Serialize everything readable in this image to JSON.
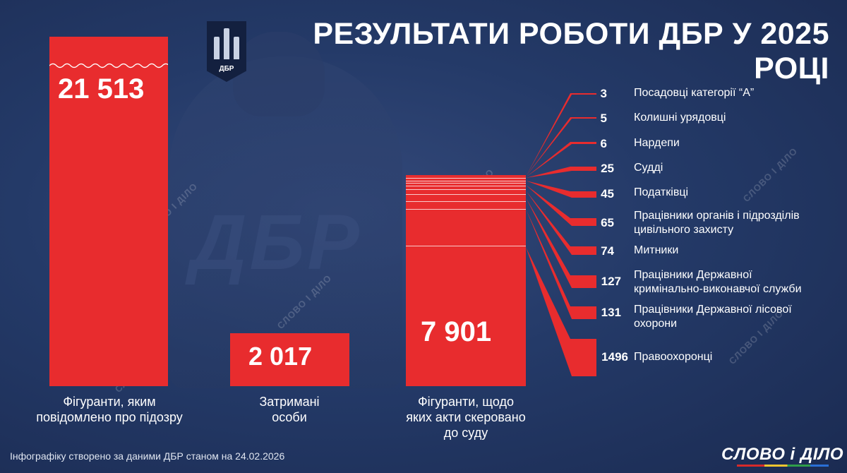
{
  "title": "РЕЗУЛЬТАТИ РОБОТИ ДБР У 2025 РОЦІ",
  "logo": {
    "text": "ДБР",
    "background_text": "ДБР"
  },
  "watermark": "СЛОВО І ДІЛО",
  "colors": {
    "bar": "#e82c2e",
    "background": "#243a68",
    "text": "#ffffff"
  },
  "chart_data": [
    {
      "type": "bar",
      "categories": [
        "Фігуранти, яким повідомлено про підозру",
        "Затримані особи",
        "Фігуранти, щодо яких акти скеровано до суду"
      ],
      "values": [
        21513,
        2017,
        7901
      ],
      "value_labels": [
        "21 513",
        "2 017",
        "7 901"
      ],
      "label_lines": [
        [
          "Фігуранти, яким",
          "повідомлено про підозру"
        ],
        [
          "Затримані",
          "особи"
        ],
        [
          "Фігуранти, щодо",
          "яких акти скеровано",
          "до суду"
        ]
      ],
      "axis_break": "first bar truncated (wavy cut)"
    },
    {
      "type": "table",
      "title": "",
      "rows": [
        {
          "value": 3,
          "label": "Посадовці категорії “А”"
        },
        {
          "value": 5,
          "label": "Колишні урядовці"
        },
        {
          "value": 6,
          "label": "Нардепи"
        },
        {
          "value": 25,
          "label": "Судді"
        },
        {
          "value": 45,
          "label": "Податківці"
        },
        {
          "value": 65,
          "label": "Працівники органів і підрозділів цивільного захисту",
          "lines": [
            "Працівники органів і підрозділів",
            "цивільного захисту"
          ]
        },
        {
          "value": 74,
          "label": "Митники"
        },
        {
          "value": 127,
          "label": "Працівники Державної кримінально-виконавчої служби",
          "lines": [
            "Працівники Державної",
            "кримінально-виконавчої служби"
          ]
        },
        {
          "value": 131,
          "label": "Працівники Державної лісової охорони",
          "lines": [
            "Працівники Державної лісової",
            "охорони"
          ]
        },
        {
          "value": 1496,
          "label": "Правоохоронці"
        }
      ]
    }
  ],
  "footer": "Інфографіку створено за даними ДБР станом на 24.02.2026",
  "brand": "СЛОВО і ДІЛО"
}
